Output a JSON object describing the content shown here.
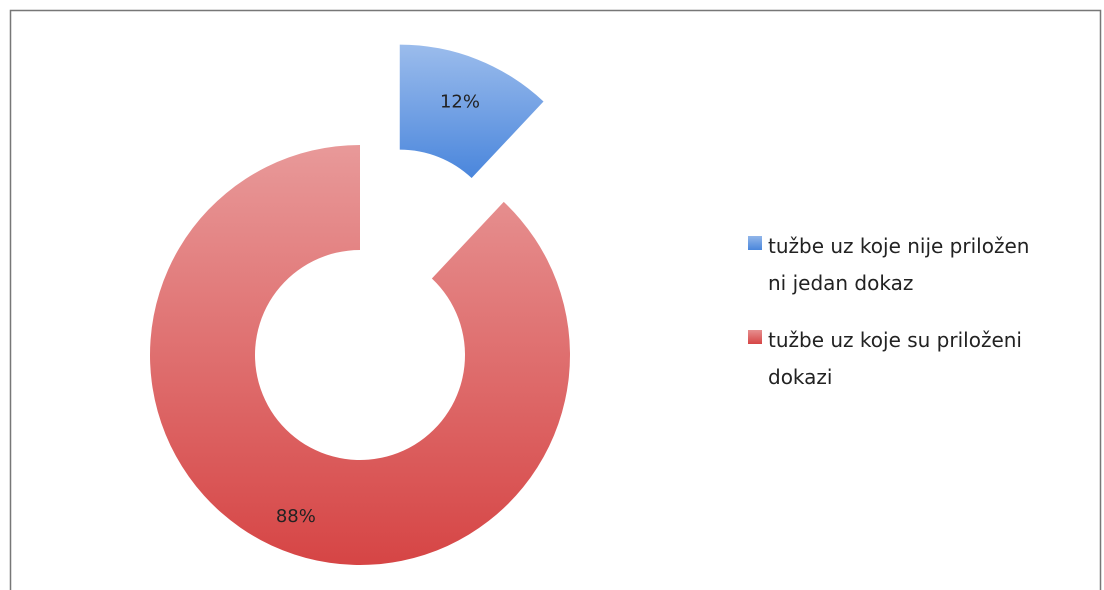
{
  "chart_data": {
    "type": "donut",
    "categories": [
      "tužbe uz koje nije priložen ni jedan dokaz",
      "tužbe uz koje su priloženi dokazi"
    ],
    "values": [
      12,
      88
    ],
    "value_labels": [
      "12%",
      "88%"
    ],
    "colors": [
      "#4a86dc",
      "#d64545"
    ],
    "legend": "right"
  }
}
